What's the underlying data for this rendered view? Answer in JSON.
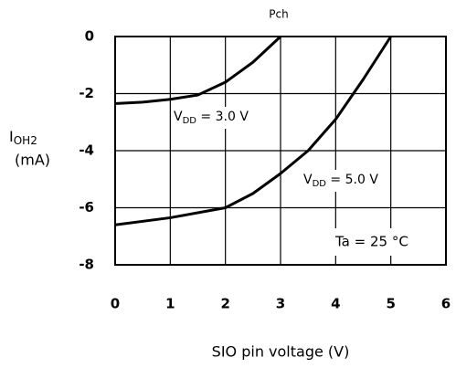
{
  "chart_data": {
    "type": "line",
    "title": "Pch",
    "xlabel": "SIO pin voltage (V)",
    "ylabel": {
      "main": "I",
      "sub": "OH2",
      "unit": "(mA)"
    },
    "xlim": [
      0,
      6
    ],
    "xticks": [
      0,
      1,
      2,
      3,
      4,
      5,
      6
    ],
    "ylim": [
      -8,
      0
    ],
    "yticks": [
      0,
      -2,
      -4,
      -6,
      -8
    ],
    "grid": true,
    "series": [
      {
        "name": {
          "main": "V",
          "sub": "DD",
          "rest": " = 3.0 V"
        },
        "color": "#000000",
        "x": [
          0,
          0.5,
          1,
          1.5,
          2,
          2.5,
          3
        ],
        "values": [
          -2.35,
          -2.3,
          -2.2,
          -2.05,
          -1.6,
          -0.9,
          0
        ]
      },
      {
        "name": {
          "main": "V",
          "sub": "DD",
          "rest": " = 5.0 V"
        },
        "color": "#000000",
        "x": [
          0,
          1,
          2,
          2.5,
          3,
          3.5,
          4,
          4.5,
          5
        ],
        "values": [
          -6.6,
          -6.35,
          -6.0,
          -5.5,
          -4.8,
          -4.0,
          -2.9,
          -1.5,
          0
        ]
      }
    ],
    "annotation": "Ta = 25 °C"
  }
}
